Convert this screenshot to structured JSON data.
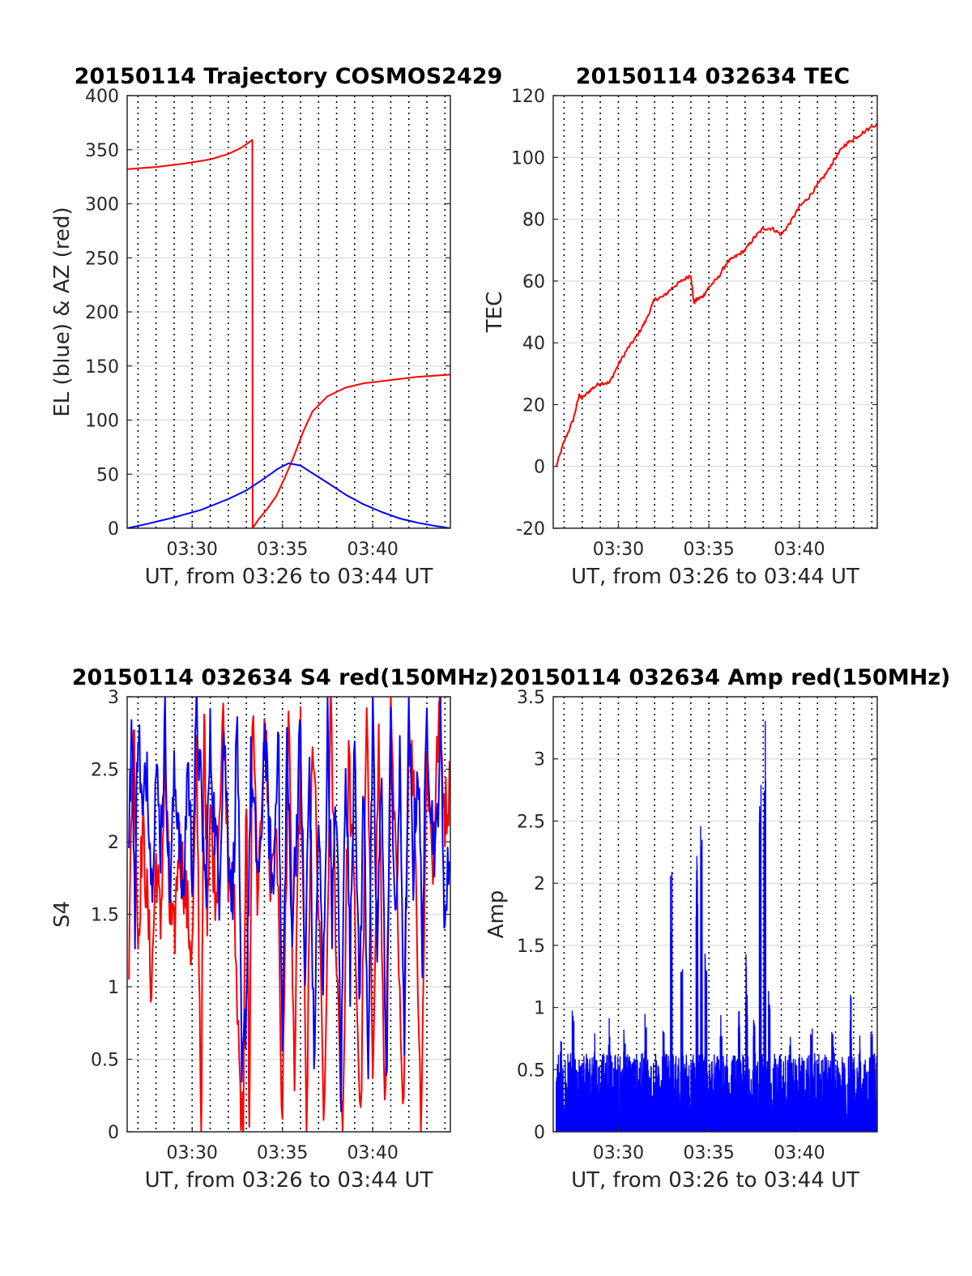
{
  "colors": {
    "red": "#ff0000",
    "blue": "#0000ff",
    "grid_major": "#dddddd",
    "grid_minor": "#000000",
    "axis": "#262626"
  },
  "chart_data": [
    {
      "type": "line",
      "title": "20150114 Trajectory COSMOS2429",
      "xlabel": "UT, from 03:26 to 03:44 UT",
      "ylabel": "EL (blue) & AZ (red)",
      "xlim": [
        "03:26:24",
        "03:44:18"
      ],
      "ylim": [
        0,
        400
      ],
      "xticks": [
        "03:30",
        "03:35",
        "03:40"
      ],
      "yticks": [
        "0",
        "50",
        "100",
        "150",
        "200",
        "250",
        "300",
        "350",
        "400"
      ],
      "grid": true,
      "series": [
        {
          "color": "red",
          "x": [
            "03:26:24",
            "03:28:00",
            "03:29:30",
            "03:31:00",
            "03:32:00",
            "03:32:30",
            "03:32:50",
            "03:33:10",
            "03:33:20",
            "03:33:21",
            "03:33:40",
            "03:34:10",
            "03:34:40",
            "03:35:10",
            "03:35:40",
            "03:36:10",
            "03:36:40",
            "03:37:30",
            "03:38:30",
            "03:39:30",
            "03:41:00",
            "03:42:30",
            "03:44:18"
          ],
          "y": [
            332,
            334,
            337,
            341,
            346,
            350,
            353,
            357,
            359,
            0,
            8,
            18,
            30,
            48,
            68,
            90,
            108,
            122,
            130,
            134,
            137,
            140,
            142
          ]
        },
        {
          "color": "blue",
          "x": [
            "03:26:24",
            "03:27:30",
            "03:29:00",
            "03:30:30",
            "03:32:00",
            "03:33:00",
            "03:34:00",
            "03:34:45",
            "03:35:20",
            "03:36:00",
            "03:36:45",
            "03:37:30",
            "03:38:30",
            "03:39:30",
            "03:40:30",
            "03:41:30",
            "03:42:30",
            "03:43:30",
            "03:44:18"
          ],
          "y": [
            0,
            4,
            10,
            17,
            27,
            35,
            46,
            55,
            60,
            58,
            50,
            42,
            31,
            22,
            15,
            9,
            5,
            2,
            0
          ]
        }
      ]
    },
    {
      "type": "line",
      "title": "20150114 032634 TEC",
      "xlabel": "UT, from 03:26 to 03:44 UT",
      "ylabel": "TEC",
      "xlim": [
        "03:26:24",
        "03:44:18"
      ],
      "ylim": [
        -20,
        120
      ],
      "xticks": [
        "03:30",
        "03:35",
        "03:40"
      ],
      "yticks": [
        "-20",
        "0",
        "20",
        "40",
        "60",
        "80",
        "100",
        "120"
      ],
      "grid": true,
      "series": [
        {
          "color": "red",
          "x": [
            "03:26:34",
            "03:27:00",
            "03:27:30",
            "03:27:50",
            "03:28:00",
            "03:28:30",
            "03:29:00",
            "03:29:30",
            "03:30:00",
            "03:30:30",
            "03:31:00",
            "03:31:30",
            "03:32:00",
            "03:32:30",
            "03:33:00",
            "03:33:30",
            "03:34:00",
            "03:34:10",
            "03:34:20",
            "03:34:40",
            "03:35:00",
            "03:35:30",
            "03:36:00",
            "03:36:30",
            "03:37:00",
            "03:37:30",
            "03:38:00",
            "03:38:30",
            "03:39:00",
            "03:39:30",
            "03:40:00",
            "03:40:30",
            "03:41:00",
            "03:41:30",
            "03:42:00",
            "03:42:30",
            "03:43:00",
            "03:43:30",
            "03:44:18"
          ],
          "y": [
            0,
            8,
            15,
            23,
            22,
            25,
            27,
            27,
            33,
            38,
            42,
            47,
            54,
            55,
            58,
            60,
            62,
            53,
            54,
            55,
            58,
            61,
            66,
            68,
            70,
            74,
            77,
            77,
            75,
            79,
            84,
            87,
            91,
            95,
            100,
            104,
            106,
            108,
            111
          ]
        }
      ]
    },
    {
      "type": "line",
      "title": "20150114 032634 S4 red(150MHz)",
      "xlabel": "UT, from 03:26 to 03:44 UT",
      "ylabel": "S4",
      "xlim": [
        "03:26:24",
        "03:44:18"
      ],
      "ylim": [
        0,
        3
      ],
      "xticks": [
        "03:30",
        "03:35",
        "03:40"
      ],
      "yticks": [
        "0",
        "0.5",
        "1",
        "1.5",
        "2",
        "2.5",
        "3"
      ],
      "grid": true,
      "series": [
        {
          "color": "red",
          "x": [
            "03:26:30",
            "03:26:45",
            "03:27:00",
            "03:27:15",
            "03:27:30",
            "03:27:45",
            "03:28:00",
            "03:28:15",
            "03:28:30",
            "03:28:45",
            "03:29:00",
            "03:29:15",
            "03:29:30",
            "03:29:45",
            "03:30:00",
            "03:30:15",
            "03:30:30",
            "03:30:40",
            "03:30:50",
            "03:31:00",
            "03:31:20",
            "03:31:40",
            "03:32:00",
            "03:32:20",
            "03:32:40",
            "03:32:50",
            "03:33:00",
            "03:33:10",
            "03:33:20",
            "03:33:40",
            "03:34:00",
            "03:34:20",
            "03:34:40",
            "03:35:00",
            "03:35:20",
            "03:35:40",
            "03:36:00",
            "03:36:20",
            "03:36:40",
            "03:37:00",
            "03:37:20",
            "03:37:40",
            "03:38:00",
            "03:38:20",
            "03:38:40",
            "03:39:00",
            "03:39:20",
            "03:39:40",
            "03:40:00",
            "03:40:20",
            "03:40:40",
            "03:41:00",
            "03:41:20",
            "03:41:40",
            "03:42:00",
            "03:42:20",
            "03:42:40",
            "03:43:00",
            "03:43:20",
            "03:43:40",
            "03:44:00",
            "03:44:18"
          ],
          "y": [
            1.2,
            2.9,
            1.3,
            2.1,
            1.6,
            1.0,
            1.9,
            1.4,
            2.6,
            1.5,
            1.3,
            2.0,
            1.8,
            1.5,
            1.2,
            2.6,
            0.0,
            2.9,
            1.6,
            2.2,
            1.6,
            2.9,
            1.8,
            1.5,
            0.3,
            0.0,
            2.4,
            0.0,
            2.9,
            1.5,
            3.0,
            1.7,
            2.2,
            0.0,
            2.9,
            0.3,
            2.7,
            0.0,
            2.8,
            1.5,
            0.0,
            2.9,
            1.2,
            0.0,
            2.6,
            1.5,
            0.0,
            2.9,
            0.5,
            2.7,
            0.0,
            2.8,
            1.6,
            0.0,
            2.9,
            2.2,
            0.0,
            2.6,
            1.8,
            2.9,
            2.2,
            2.4
          ]
        },
        {
          "color": "blue",
          "x": [
            "03:26:30",
            "03:26:40",
            "03:26:50",
            "03:27:00",
            "03:27:15",
            "03:27:30",
            "03:27:45",
            "03:28:00",
            "03:28:15",
            "03:28:30",
            "03:28:45",
            "03:29:00",
            "03:29:15",
            "03:29:30",
            "03:29:45",
            "03:30:00",
            "03:30:15",
            "03:30:30",
            "03:30:45",
            "03:31:00",
            "03:31:15",
            "03:31:30",
            "03:31:45",
            "03:32:00",
            "03:32:15",
            "03:32:30",
            "03:32:45",
            "03:33:00",
            "03:33:15",
            "03:33:30",
            "03:33:45",
            "03:34:00",
            "03:34:15",
            "03:34:30",
            "03:34:45",
            "03:35:00",
            "03:35:15",
            "03:35:30",
            "03:35:45",
            "03:36:00",
            "03:36:15",
            "03:36:30",
            "03:36:45",
            "03:37:00",
            "03:37:15",
            "03:37:30",
            "03:37:45",
            "03:38:00",
            "03:38:15",
            "03:38:30",
            "03:38:45",
            "03:39:00",
            "03:39:15",
            "03:39:30",
            "03:39:45",
            "03:40:00",
            "03:40:15",
            "03:40:30",
            "03:40:45",
            "03:41:00",
            "03:41:15",
            "03:41:30",
            "03:41:45",
            "03:42:00",
            "03:42:15",
            "03:42:30",
            "03:42:45",
            "03:43:00",
            "03:43:15",
            "03:43:30",
            "03:43:45",
            "03:44:00",
            "03:44:18"
          ],
          "y": [
            2.2,
            2.8,
            1.5,
            2.9,
            2.1,
            2.6,
            1.7,
            2.5,
            2.0,
            2.8,
            1.6,
            2.4,
            2.2,
            1.5,
            2.6,
            1.8,
            2.9,
            2.3,
            1.6,
            2.7,
            2.1,
            1.7,
            2.8,
            2.0,
            1.6,
            2.9,
            0.3,
            0.9,
            2.5,
            2.0,
            1.7,
            2.8,
            2.1,
            1.6,
            2.9,
            0.5,
            2.7,
            1.4,
            2.0,
            2.8,
            1.0,
            2.6,
            0.4,
            2.2,
            0.9,
            2.8,
            1.5,
            2.3,
            0.3,
            2.7,
            1.1,
            2.9,
            0.8,
            2.4,
            0.5,
            2.8,
            1.2,
            2.6,
            0.2,
            2.9,
            1.3,
            2.5,
            0.7,
            2.8,
            1.8,
            2.6,
            1.3,
            2.9,
            2.2,
            1.9,
            2.8,
            1.4,
            2.1
          ]
        }
      ]
    },
    {
      "type": "line",
      "title": "20150114 032634 Amp red(150MHz)",
      "xlabel": "UT, from 03:26 to 03:44 UT",
      "ylabel": "Amp",
      "xlim": [
        "03:26:24",
        "03:44:18"
      ],
      "ylim": [
        0,
        3.5
      ],
      "xticks": [
        "03:30",
        "03:35",
        "03:40"
      ],
      "yticks": [
        "0",
        "0.5",
        "1",
        "1.5",
        "2",
        "2.5",
        "3",
        "3.5"
      ],
      "grid": true,
      "series": [
        {
          "color": "red",
          "x": [
            "03:37:55",
            "03:38:00",
            "03:38:05",
            "03:38:10"
          ],
          "y": [
            0.05,
            0.12,
            0.18,
            0.05
          ]
        },
        {
          "color": "blue",
          "x": [],
          "y": [],
          "peaks": {
            "x": [
              "03:26:50",
              "03:27:30",
              "03:28:40",
              "03:29:30",
              "03:30:20",
              "03:31:30",
              "03:32:30",
              "03:32:55",
              "03:33:30",
              "03:34:20",
              "03:34:35",
              "03:34:50",
              "03:35:40",
              "03:36:40",
              "03:37:05",
              "03:37:30",
              "03:37:50",
              "03:38:05",
              "03:38:20",
              "03:39:30",
              "03:40:40",
              "03:41:50",
              "03:42:50",
              "03:43:20",
              "03:44:00"
            ],
            "y": [
              0.75,
              1.12,
              0.85,
              0.98,
              0.92,
              0.95,
              0.88,
              2.13,
              1.4,
              2.6,
              2.5,
              1.55,
              0.95,
              0.98,
              1.55,
              0.9,
              2.85,
              3.4,
              1.25,
              0.8,
              0.85,
              0.8,
              1.12,
              0.82,
              0.8
            ]
          }
        }
      ]
    }
  ]
}
